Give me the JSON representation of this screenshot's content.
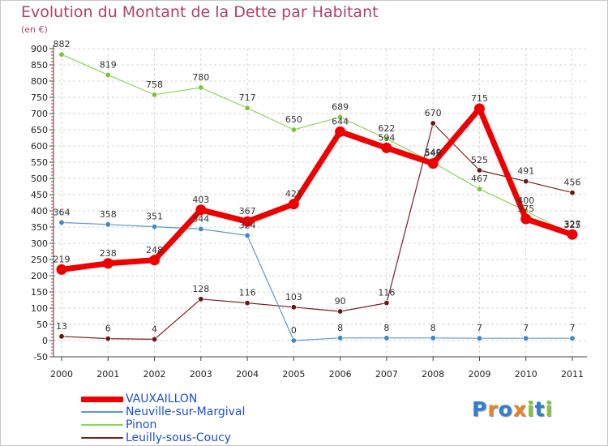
{
  "title": "Evolution du Montant de la Dette par Habitant",
  "unit": "(en €)",
  "logo": {
    "text": "Proxiti",
    "letters": [
      "P",
      "r",
      "o",
      "x",
      "i",
      "t",
      "i"
    ],
    "colors": [
      "#2f7fd6",
      "#e8852a",
      "#2f7fd6",
      "#e8852a",
      "#8ac43f",
      "#2f7fd6",
      "#8ac43f"
    ]
  },
  "chart_data": {
    "type": "line",
    "title": "Evolution du Montant de la Dette par Habitant",
    "ylabel": "(en €)",
    "xlabel": "",
    "x": [
      "2000",
      "2001",
      "2002",
      "2003",
      "2004",
      "2005",
      "2006",
      "2007",
      "2008",
      "2009",
      "2010",
      "2011"
    ],
    "ylim": [
      -50,
      900
    ],
    "yticks": [
      -50,
      0,
      50,
      100,
      150,
      200,
      250,
      300,
      350,
      400,
      450,
      500,
      550,
      600,
      650,
      700,
      750,
      800,
      850,
      900
    ],
    "grid": true,
    "legend_position": "bottom-left",
    "series": [
      {
        "name": "Leuilly-sous-Coucy",
        "color": "#7a1f1f",
        "dot": "#6b1616",
        "width": 1.2,
        "dotr": 3.2,
        "values": [
          13,
          6,
          4,
          128,
          116,
          103,
          90,
          116,
          670,
          525,
          491,
          456
        ],
        "labels": [
          "13",
          "6",
          "4",
          "128",
          "116",
          "103",
          "90",
          "116",
          "670",
          "525",
          "491",
          "456"
        ]
      },
      {
        "name": "Pinon",
        "color": "#8fd45a",
        "dot": "#7cc43c",
        "width": 1.2,
        "dotr": 3.2,
        "values": [
          882,
          819,
          758,
          780,
          717,
          650,
          689,
          622,
          549,
          467,
          400,
          325
        ],
        "labels": [
          "882",
          "819",
          "758",
          "780",
          "717",
          "650",
          "689",
          "622",
          "549",
          "467",
          "400",
          "325"
        ]
      },
      {
        "name": "Neuville-sur-Margival",
        "color": "#5b97d0",
        "dot": "#3e86cc",
        "width": 1.2,
        "dotr": 3.2,
        "values": [
          364,
          358,
          351,
          344,
          324,
          0,
          8,
          8,
          8,
          7,
          7,
          7
        ],
        "labels": [
          "364",
          "358",
          "351",
          "344",
          "324",
          "0",
          "8",
          "8",
          "8",
          "7",
          "7",
          "7"
        ]
      },
      {
        "name": "VAUXAILLON",
        "color": "#ee0000",
        "dot": "#ee0000",
        "width": 7,
        "dotr": 6.5,
        "values": [
          219,
          238,
          248,
          403,
          367,
          421,
          644,
          594,
          546,
          715,
          375,
          327
        ],
        "labels": [
          "219",
          "238",
          "248",
          "403",
          "367",
          "421",
          "644",
          "594",
          "546",
          "715",
          "375",
          "327"
        ]
      }
    ],
    "legend": [
      "VAUXAILLON",
      "Neuville-sur-Margival",
      "Pinon",
      "Leuilly-sous-Coucy"
    ]
  }
}
